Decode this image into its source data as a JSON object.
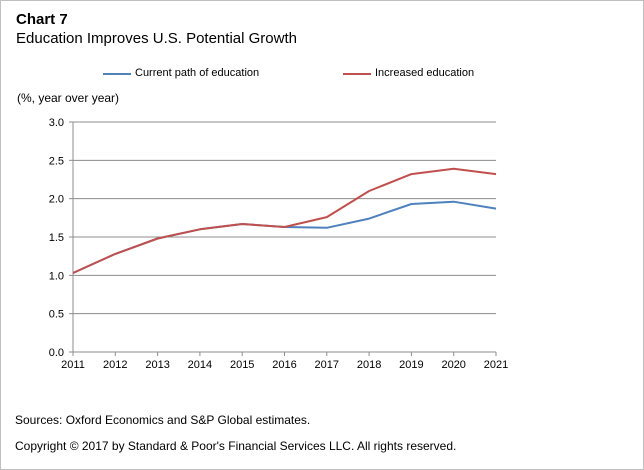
{
  "header": {
    "chart_number": "Chart 7",
    "subtitle": "Education Improves U.S. Potential Growth"
  },
  "legend": [
    {
      "label": "Current path of education",
      "color": "#4f81bd"
    },
    {
      "label": "Increased education",
      "color": "#c0504d"
    }
  ],
  "axis": {
    "unit_label": "(%, year over year)"
  },
  "footer": {
    "source": "Sources: Oxford Economics and S&P Global estimates.",
    "copyright": "Copyright © 2017 by Standard & Poor's Financial Services LLC. All rights reserved."
  },
  "chart_data": {
    "type": "line",
    "title": "Education Improves U.S. Potential Growth",
    "xlabel": "",
    "ylabel": "(%, year over year)",
    "categories": [
      "2011",
      "2012",
      "2013",
      "2014",
      "2015",
      "2016",
      "2017",
      "2018",
      "2019",
      "2020",
      "2021"
    ],
    "ylim": [
      0,
      3.0
    ],
    "yticks": [
      "0.0",
      "0.5",
      "1.0",
      "1.5",
      "2.0",
      "2.5",
      "3.0"
    ],
    "grid": true,
    "legend_position": "top",
    "series": [
      {
        "name": "Current path of education",
        "color": "#4f81bd",
        "values": [
          1.03,
          1.28,
          1.48,
          1.6,
          1.67,
          1.63,
          1.62,
          1.74,
          1.93,
          1.96,
          1.87
        ]
      },
      {
        "name": "Increased education",
        "color": "#c0504d",
        "values": [
          1.03,
          1.28,
          1.48,
          1.6,
          1.67,
          1.63,
          1.76,
          2.1,
          2.32,
          2.39,
          2.32
        ]
      }
    ]
  }
}
